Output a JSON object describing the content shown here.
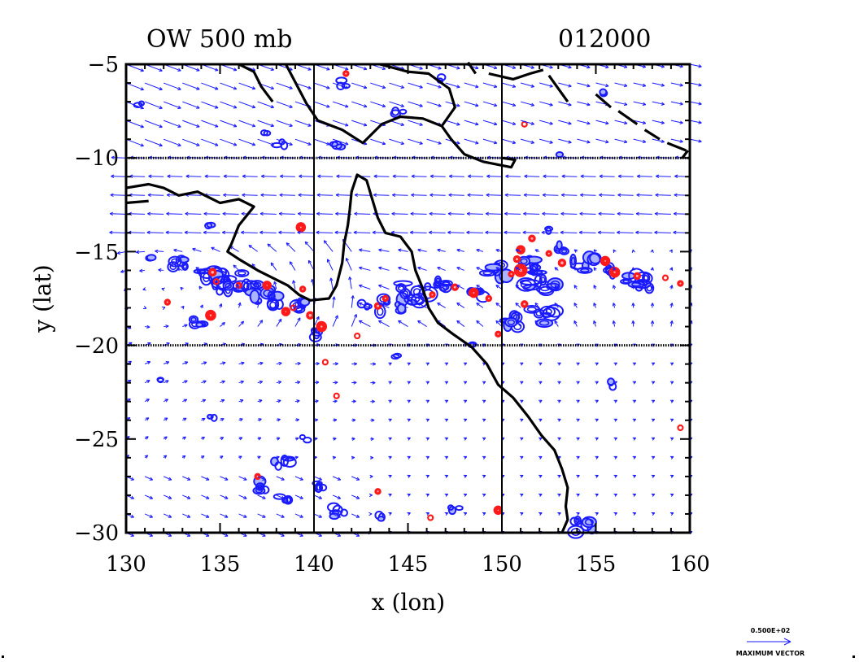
{
  "chart_data": {
    "type": "scatter",
    "title_left": "OW 500 mb",
    "title_right": "012000",
    "xlabel": "x (lon)",
    "ylabel": "y (lat)",
    "xlim": [
      130,
      160
    ],
    "ylim": [
      -30,
      -5
    ],
    "xticks": [
      130,
      135,
      140,
      145,
      150,
      155,
      160
    ],
    "yticks": [
      -5,
      -10,
      -15,
      -20,
      -25,
      -30
    ],
    "xtick_labels": [
      "130",
      "135",
      "140",
      "145",
      "150",
      "155",
      "160"
    ],
    "ytick_labels": [
      "−5",
      "−10",
      "−15",
      "−20",
      "−25",
      "−30"
    ],
    "reference_lines": {
      "lon": [
        140,
        150
      ],
      "lat_dotted": [
        -10,
        -20
      ]
    },
    "legend": {
      "value": "0.500E+02",
      "label": "MAXIMUM VECTOR",
      "placement": "bottom-right"
    },
    "colors": {
      "wind_vectors": "#1a1aff",
      "negative_ow": "#1a1aff",
      "negative_ow_fill": "#aab4ff",
      "positive_ow": "#ff1a1a",
      "positive_ow_fill": "#ffb4b4",
      "coast": "#000000"
    },
    "coastline": [
      [
        [
          130.0,
          -11.6
        ],
        [
          131.2,
          -11.4
        ],
        [
          132.0,
          -11.6
        ],
        [
          132.8,
          -12.0
        ],
        [
          133.8,
          -11.8
        ],
        [
          135.0,
          -12.4
        ],
        [
          136.0,
          -12.2
        ],
        [
          136.8,
          -12.6
        ],
        [
          136.0,
          -13.6
        ],
        [
          135.6,
          -14.6
        ],
        [
          135.4,
          -15.0
        ],
        [
          136.0,
          -15.4
        ],
        [
          137.0,
          -16.0
        ],
        [
          137.8,
          -16.4
        ],
        [
          138.6,
          -16.8
        ],
        [
          139.2,
          -17.3
        ],
        [
          139.8,
          -17.6
        ],
        [
          140.8,
          -17.5
        ],
        [
          141.2,
          -16.8
        ],
        [
          141.5,
          -15.6
        ],
        [
          141.6,
          -14.6
        ],
        [
          141.8,
          -13.6
        ],
        [
          141.9,
          -12.8
        ],
        [
          142.0,
          -11.8
        ],
        [
          142.3,
          -10.9
        ],
        [
          142.8,
          -11.2
        ],
        [
          143.1,
          -12.2
        ],
        [
          143.4,
          -13.2
        ],
        [
          143.8,
          -14.0
        ],
        [
          144.6,
          -14.2
        ],
        [
          145.2,
          -15.0
        ],
        [
          145.4,
          -16.0
        ],
        [
          145.8,
          -17.0
        ],
        [
          146.1,
          -18.0
        ],
        [
          146.6,
          -18.8
        ],
        [
          147.4,
          -19.4
        ],
        [
          148.4,
          -20.1
        ],
        [
          149.2,
          -21.0
        ],
        [
          149.8,
          -22.1
        ],
        [
          150.6,
          -22.8
        ],
        [
          151.4,
          -23.8
        ],
        [
          152.1,
          -24.8
        ],
        [
          152.8,
          -25.6
        ],
        [
          153.2,
          -26.6
        ],
        [
          153.5,
          -27.6
        ],
        [
          153.4,
          -28.6
        ],
        [
          153.5,
          -29.3
        ],
        [
          153.2,
          -30.0
        ]
      ],
      [
        [
          130.0,
          -12.4
        ],
        [
          131.2,
          -12.3
        ]
      ],
      [
        [
          138.5,
          -5.0
        ],
        [
          139.6,
          -7.1
        ],
        [
          140.2,
          -8.0
        ],
        [
          141.5,
          -8.5
        ],
        [
          142.6,
          -9.2
        ],
        [
          143.6,
          -8.2
        ],
        [
          144.6,
          -7.8
        ],
        [
          145.8,
          -7.9
        ],
        [
          146.8,
          -8.3
        ],
        [
          147.3,
          -9.0
        ],
        [
          148.0,
          -9.8
        ],
        [
          149.0,
          -10.2
        ],
        [
          150.5,
          -10.5
        ],
        [
          150.7,
          -10.1
        ],
        [
          150.0,
          -10.0
        ]
      ],
      [
        [
          143.5,
          -5.0
        ],
        [
          145.0,
          -5.4
        ],
        [
          146.1,
          -5.5
        ],
        [
          147.2,
          -6.3
        ],
        [
          147.5,
          -7.3
        ],
        [
          146.8,
          -8.3
        ]
      ],
      [
        [
          136.0,
          -5.0
        ],
        [
          136.8,
          -5.4
        ],
        [
          137.2,
          -6.2
        ],
        [
          137.8,
          -7.0
        ]
      ],
      [
        [
          149.3,
          -5.5
        ],
        [
          150.6,
          -5.8
        ],
        [
          151.5,
          -5.5
        ],
        [
          152.2,
          -5.3
        ]
      ],
      [
        [
          148.6,
          -5.5
        ],
        [
          148.2,
          -4.9
        ]
      ],
      [
        [
          152.5,
          -5.6
        ],
        [
          153.5,
          -7.0
        ]
      ],
      [
        [
          155.0,
          -6.6
        ],
        [
          155.8,
          -7.3
        ]
      ],
      [
        [
          156.2,
          -7.5
        ],
        [
          157.2,
          -8.2
        ]
      ],
      [
        [
          157.6,
          -8.5
        ],
        [
          158.4,
          -9.0
        ]
      ],
      [
        [
          158.8,
          -9.2
        ],
        [
          159.8,
          -9.6
        ]
      ],
      [
        [
          159.6,
          -10.0
        ],
        [
          159.9,
          -9.6
        ]
      ]
    ],
    "positive_features": [
      [
        132.2,
        -17.7,
        0.3
      ],
      [
        134.5,
        -18.4,
        0.55
      ],
      [
        134.6,
        -16.1,
        0.4
      ],
      [
        136.0,
        -16.8,
        0.3
      ],
      [
        137.5,
        -16.8,
        0.45
      ],
      [
        138.5,
        -18.2,
        0.45
      ],
      [
        139.3,
        -13.7,
        0.5
      ],
      [
        139.4,
        -17.0,
        0.3
      ],
      [
        139.8,
        -18.4,
        0.4
      ],
      [
        140.4,
        -19.0,
        0.55
      ],
      [
        140.6,
        -20.9,
        0.25
      ],
      [
        141.7,
        -5.5,
        0.3
      ],
      [
        142.3,
        -19.5,
        0.2
      ],
      [
        143.4,
        -17.9,
        0.35
      ],
      [
        146.3,
        -17.3,
        0.3
      ],
      [
        147.5,
        -16.9,
        0.35
      ],
      [
        148.5,
        -17.2,
        0.5
      ],
      [
        149.3,
        -17.5,
        0.3
      ],
      [
        149.8,
        -19.4,
        0.3
      ],
      [
        150.5,
        -16.2,
        0.3
      ],
      [
        151.0,
        -14.9,
        0.45
      ],
      [
        151.0,
        -16.0,
        0.7
      ],
      [
        151.2,
        -17.8,
        0.35
      ],
      [
        151.6,
        -14.3,
        0.35
      ],
      [
        153.2,
        -15.6,
        0.4
      ],
      [
        155.5,
        -15.5,
        0.5
      ],
      [
        156.0,
        -16.1,
        0.55
      ],
      [
        157.2,
        -16.3,
        0.35
      ],
      [
        158.7,
        -16.4,
        0.25
      ],
      [
        159.5,
        -16.7,
        0.3
      ],
      [
        137.0,
        -27.0,
        0.3
      ],
      [
        143.4,
        -27.8,
        0.3
      ],
      [
        146.2,
        -29.2,
        0.2
      ],
      [
        149.8,
        -28.8,
        0.45
      ],
      [
        151.2,
        -8.2,
        0.2
      ],
      [
        141.2,
        -22.7,
        0.15
      ],
      [
        134.8,
        -16.6,
        0.25
      ],
      [
        138.9,
        -18.0,
        0.25
      ],
      [
        159.5,
        -24.4,
        0.15
      ],
      [
        143.8,
        -17.5,
        0.3
      ],
      [
        152.5,
        -15.1,
        0.3
      ],
      [
        150.8,
        -15.4,
        0.35
      ]
    ],
    "negative_features": [
      [
        132.8,
        -15.6,
        0.5
      ],
      [
        134.5,
        -16.5,
        1.1
      ],
      [
        135.8,
        -16.6,
        1.1
      ],
      [
        137.2,
        -17.2,
        0.8
      ],
      [
        139.0,
        -18.0,
        0.6
      ],
      [
        138.0,
        -17.6,
        0.5
      ],
      [
        133.8,
        -18.7,
        0.45
      ],
      [
        131.3,
        -15.3,
        0.3
      ],
      [
        134.3,
        -13.5,
        0.25
      ],
      [
        140.0,
        -19.3,
        0.5
      ],
      [
        141.7,
        -6.0,
        0.35
      ],
      [
        144.2,
        -17.9,
        0.8
      ],
      [
        145.5,
        -17.2,
        1.0
      ],
      [
        146.8,
        -16.8,
        0.5
      ],
      [
        148.5,
        -17.4,
        0.6
      ],
      [
        149.8,
        -16.0,
        0.8
      ],
      [
        151.0,
        -15.6,
        1.0
      ],
      [
        152.0,
        -16.6,
        1.0
      ],
      [
        152.2,
        -18.4,
        0.8
      ],
      [
        150.8,
        -18.7,
        0.7
      ],
      [
        154.4,
        -15.7,
        0.8
      ],
      [
        156.3,
        -16.3,
        0.7
      ],
      [
        157.6,
        -16.6,
        0.8
      ],
      [
        153.2,
        -14.8,
        0.4
      ],
      [
        156.0,
        -22.1,
        0.35
      ],
      [
        138.3,
        -26.2,
        0.5
      ],
      [
        137.0,
        -27.5,
        0.5
      ],
      [
        138.5,
        -28.2,
        0.4
      ],
      [
        140.2,
        -27.6,
        0.45
      ],
      [
        141.2,
        -28.9,
        0.5
      ],
      [
        143.5,
        -29.2,
        0.3
      ],
      [
        147.5,
        -28.7,
        0.3
      ],
      [
        154.2,
        -29.6,
        0.7
      ],
      [
        142.7,
        -17.8,
        0.3
      ],
      [
        137.4,
        -8.7,
        0.2
      ],
      [
        138.2,
        -9.2,
        0.3
      ],
      [
        141.2,
        -9.4,
        0.3
      ],
      [
        130.8,
        -7.2,
        0.25
      ],
      [
        144.6,
        -7.6,
        0.3
      ],
      [
        148.4,
        -20.0,
        0.2
      ],
      [
        144.3,
        -20.6,
        0.25
      ],
      [
        152.6,
        -13.8,
        0.25
      ],
      [
        155.5,
        -6.5,
        0.2
      ],
      [
        153.0,
        -9.8,
        0.15
      ],
      [
        146.8,
        -5.8,
        0.2
      ],
      [
        139.5,
        -25.0,
        0.2
      ],
      [
        134.6,
        -23.8,
        0.2
      ],
      [
        132.0,
        -21.8,
        0.2
      ]
    ],
    "grid_points": {
      "lon_spacing": 1.0,
      "lat_spacing": 1.0
    },
    "sample_vectors": [
      {
        "lon": 132,
        "lat": -7,
        "u": 2.0,
        "v": -0.8
      },
      {
        "lon": 145,
        "lat": -12,
        "u": -1.6,
        "v": 0.05
      },
      {
        "lon": 134,
        "lat": -17,
        "u": 0.6,
        "v": 0.8
      },
      {
        "lon": 150,
        "lat": -25,
        "u": 0.2,
        "v": 0.1
      }
    ]
  }
}
